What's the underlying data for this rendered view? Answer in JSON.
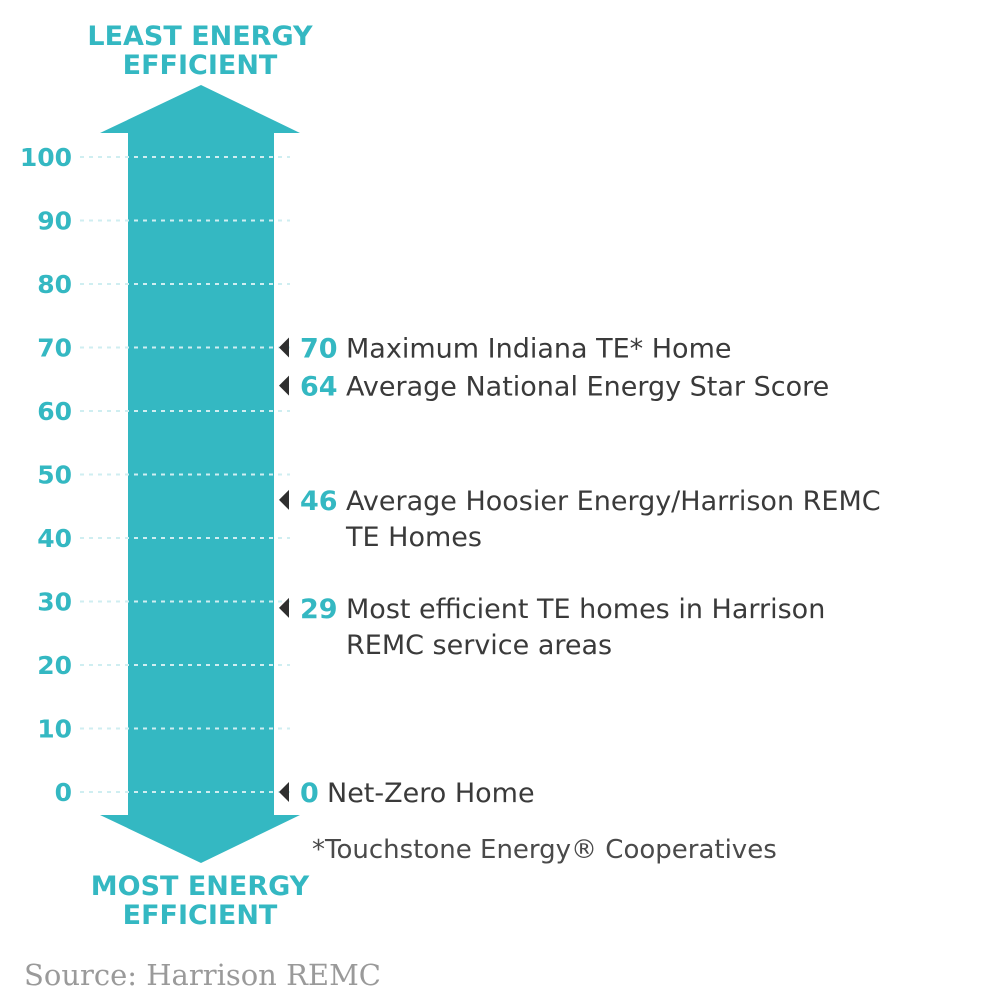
{
  "chart_data": {
    "type": "scale",
    "title_top": [
      "LEAST ENERGY",
      "EFFICIENT"
    ],
    "title_bottom": [
      "MOST ENERGY",
      "EFFICIENT"
    ],
    "y_ticks": [
      100,
      90,
      80,
      70,
      60,
      50,
      40,
      30,
      20,
      10,
      0
    ],
    "ylim": [
      0,
      100
    ],
    "grid": true,
    "accent_color": "#34b8c2",
    "annotations": [
      {
        "value": 70,
        "label_lines": [
          "Maximum Indiana TE* Home"
        ]
      },
      {
        "value": 64,
        "label_lines": [
          "Average National Energy Star Score"
        ]
      },
      {
        "value": 46,
        "label_lines": [
          "Average Hoosier Energy/Harrison REMC",
          "TE Homes"
        ]
      },
      {
        "value": 29,
        "label_lines": [
          "Most efficient TE homes in Harrison",
          "REMC service areas"
        ]
      },
      {
        "value": 0,
        "label_lines": [
          "Net-Zero Home"
        ]
      }
    ],
    "footnote": "*Touchstone Energy® Cooperatives",
    "source": "Source: Harrison REMC"
  }
}
